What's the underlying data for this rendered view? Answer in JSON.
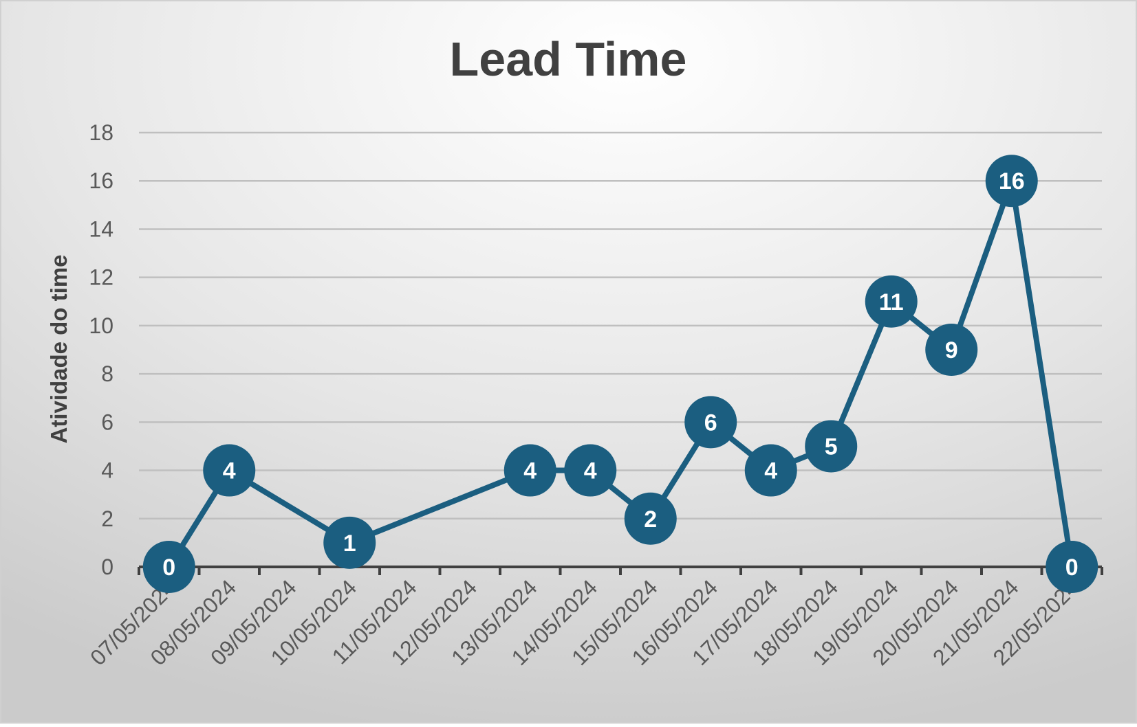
{
  "chart_data": {
    "type": "line",
    "title": "Lead Time",
    "xlabel": "",
    "ylabel": "Atividade do time",
    "categories": [
      "07/05/2024",
      "08/05/2024",
      "09/05/2024",
      "10/05/2024",
      "11/05/2024",
      "12/05/2024",
      "13/05/2024",
      "14/05/2024",
      "15/05/2024",
      "16/05/2024",
      "17/05/2024",
      "18/05/2024",
      "19/05/2024",
      "20/05/2024",
      "21/05/2024",
      "22/05/2024"
    ],
    "series": [
      {
        "values": [
          0,
          4,
          null,
          1,
          null,
          null,
          4,
          4,
          2,
          6,
          4,
          5,
          11,
          9,
          16,
          0
        ]
      }
    ],
    "ylim": [
      0,
      18
    ],
    "yticks": [
      0,
      2,
      4,
      6,
      8,
      10,
      12,
      14,
      16,
      18
    ],
    "grid": true,
    "data_labels": true,
    "legend": "none",
    "colors": {
      "series": "#1B5E80",
      "label_text": "#FFFFFF",
      "gridline": "#BFBFBF",
      "axis": "#404040",
      "title": "#404040",
      "tick_text": "#595959"
    }
  }
}
